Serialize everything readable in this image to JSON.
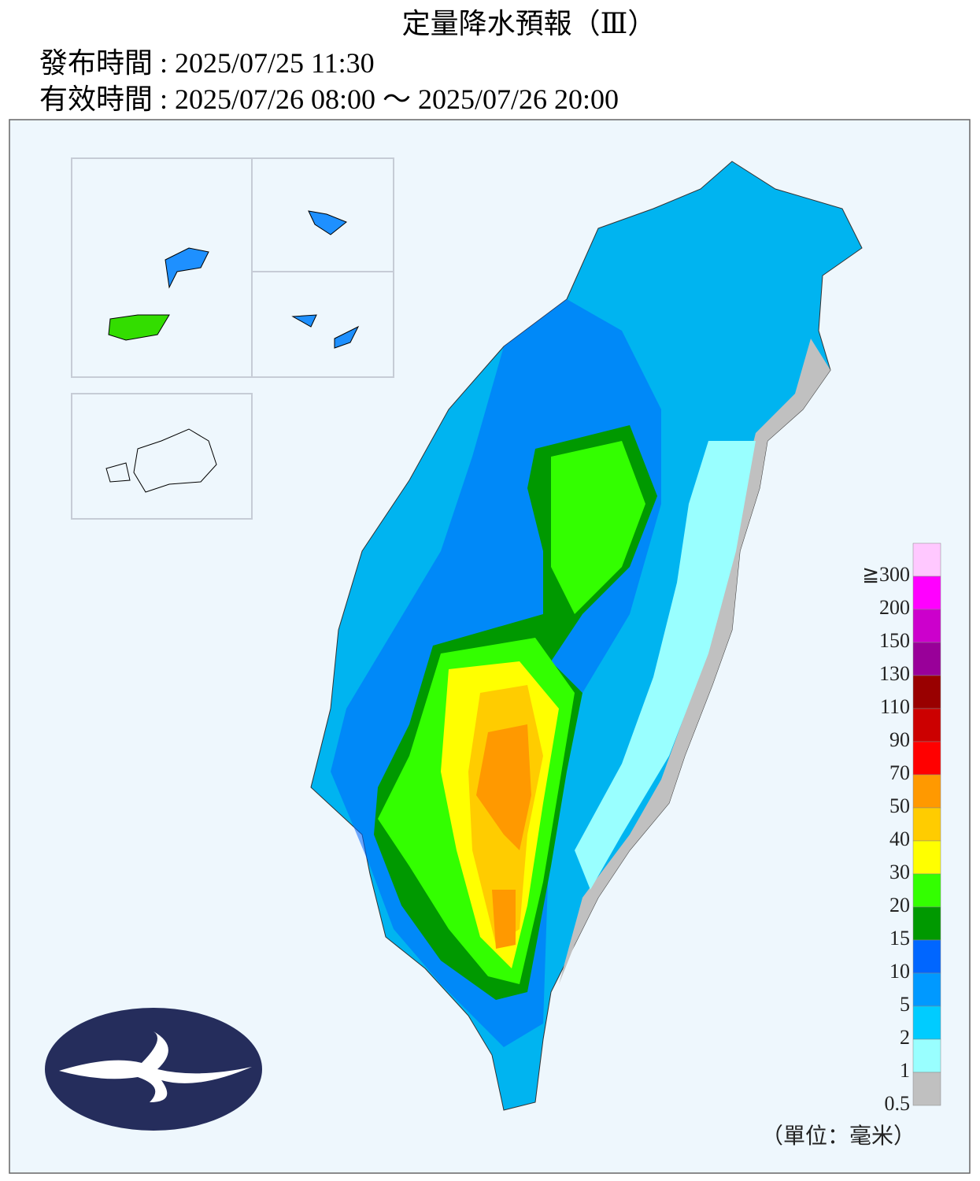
{
  "header": {
    "title": "定量降水預報（Ⅲ）",
    "issued": "發布時間 : 2025/07/25 11:30",
    "valid": "有效時間 : 2025/07/26 08:00 ～ 2025/07/26 20:00"
  },
  "legend": {
    "labels": [
      "≧300",
      "200",
      "150",
      "130",
      "110",
      "90",
      "70",
      "50",
      "40",
      "30",
      "20",
      "15",
      "10",
      "5",
      "2",
      "1",
      "0.5"
    ],
    "colors": [
      "#ffc8ff",
      "#ff00ff",
      "#cc00cc",
      "#990099",
      "#990000",
      "#cc0000",
      "#ff0000",
      "#ff9900",
      "#ffcc00",
      "#ffff00",
      "#33ff00",
      "#009900",
      "#0066ff",
      "#0099ff",
      "#00ccff",
      "#99ffff",
      "#c0c0c0"
    ],
    "unit": "（單位：毫米）"
  }
}
